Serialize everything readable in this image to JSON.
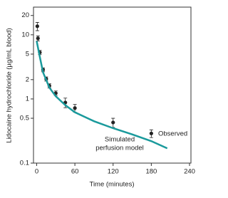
{
  "chart_data": {
    "type": "scatter",
    "x_label": "Time (minutes)",
    "y_label": "Lidocaine hydrochloride (µg/mL blood)",
    "log_y": true,
    "xlim": [
      -5,
      240
    ],
    "xticks": [
      0,
      60,
      120,
      180,
      240
    ],
    "ylim": [
      0.1,
      25
    ],
    "yticks": [
      0.1,
      0.5,
      1,
      2,
      5,
      10,
      20
    ],
    "series": [
      {
        "name": "Observed",
        "color": "#222222",
        "x": [
          1,
          2,
          5,
          10,
          15,
          20,
          30,
          45,
          60,
          120,
          180
        ],
        "values": [
          13.6,
          8.8,
          5.3,
          2.85,
          2.05,
          1.6,
          1.23,
          0.88,
          0.72,
          0.43,
          0.29
        ],
        "errors": [
          2,
          0.8,
          0.4,
          0.2,
          0.15,
          0.12,
          0.1,
          0.15,
          0.1,
          0.07,
          0.04
        ]
      },
      {
        "name": "Simulated perfusion model",
        "color": "#1a9a9c",
        "line": true,
        "x": [
          0,
          5,
          10,
          20,
          30,
          45,
          60,
          90,
          120,
          150,
          180,
          205
        ],
        "values": [
          8,
          4.5,
          2.6,
          1.5,
          1.1,
          0.8,
          0.62,
          0.45,
          0.35,
          0.28,
          0.22,
          0.17
        ]
      }
    ],
    "annotations": [
      "Simulated",
      "perfusion model",
      "Observed"
    ]
  }
}
